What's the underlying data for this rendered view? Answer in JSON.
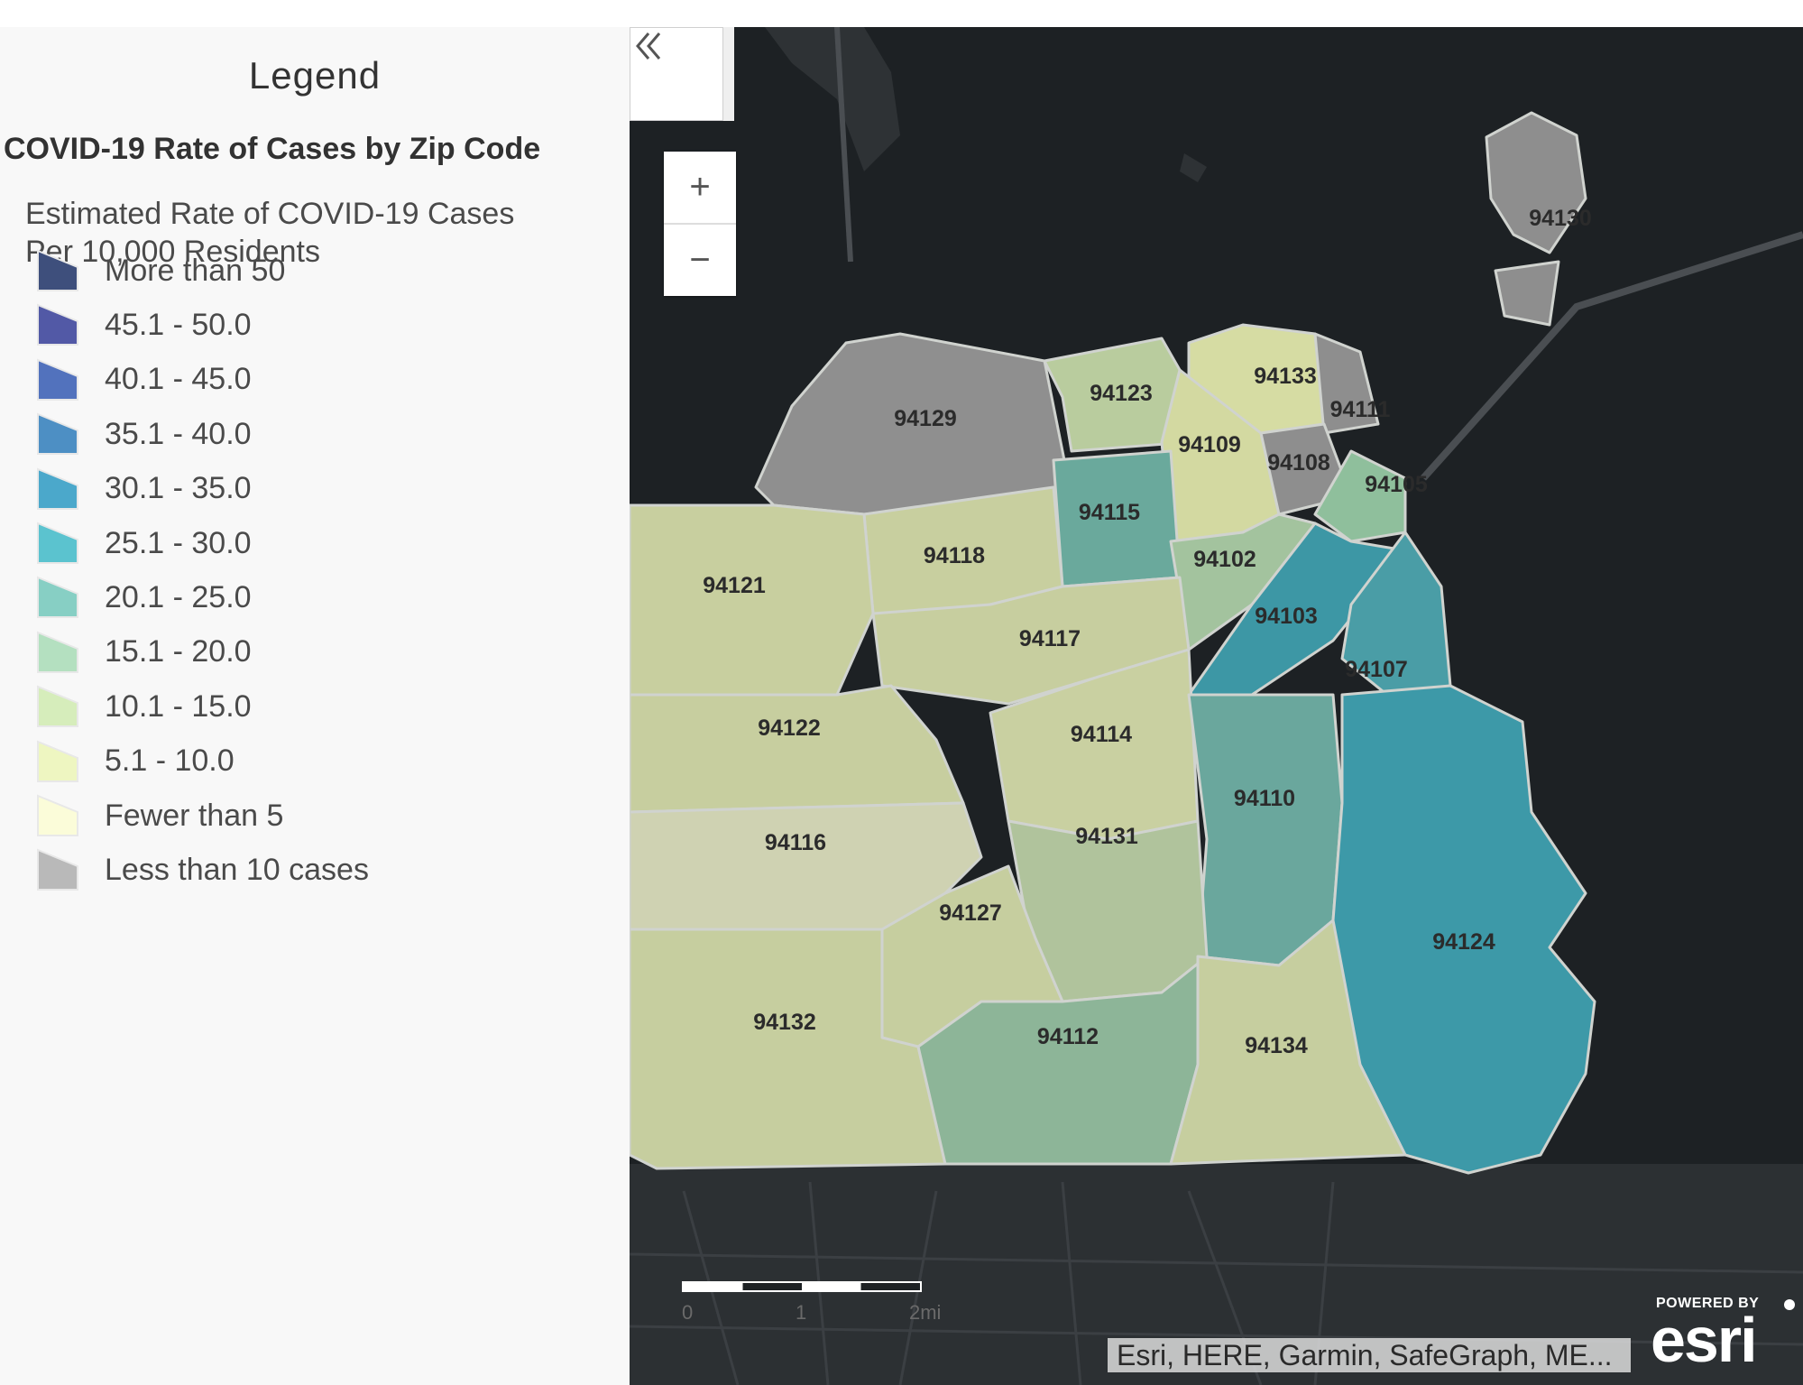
{
  "legend": {
    "title": "Legend",
    "layer_title": "COVID-19 Rate of Cases by Zip Code",
    "field_title": "Estimated Rate of COVID-19 Cases\nPer 10,000 Residents",
    "classes": [
      {
        "label": "More than 50",
        "color": "#3e4f7c"
      },
      {
        "label": "45.1 - 50.0",
        "color": "#5259a6"
      },
      {
        "label": "40.1 - 45.0",
        "color": "#5272bd"
      },
      {
        "label": "35.1 - 40.0",
        "color": "#4d8fc4"
      },
      {
        "label": "30.1 - 35.0",
        "color": "#4ba8cb"
      },
      {
        "label": "25.1 - 30.0",
        "color": "#5bc3cf"
      },
      {
        "label": "20.1 - 25.0",
        "color": "#87cfc4"
      },
      {
        "label": "15.1 - 20.0",
        "color": "#b4e0c0"
      },
      {
        "label": "10.1 - 15.0",
        "color": "#d6edbb"
      },
      {
        "label": "5.1 - 10.0",
        "color": "#eef6c1"
      },
      {
        "label": "Fewer than 5",
        "color": "#fbfcd9"
      },
      {
        "label": "Less than 10 cases",
        "color": "#b9b9b9"
      }
    ]
  },
  "map": {
    "zip_codes": [
      {
        "zip": "94129",
        "class": "Less than 10 cases"
      },
      {
        "zip": "94123",
        "class": "15.1 - 20.0"
      },
      {
        "zip": "94133",
        "class": "10.1 - 15.0"
      },
      {
        "zip": "94111",
        "class": "Less than 10 cases"
      },
      {
        "zip": "94109",
        "class": "10.1 - 15.0"
      },
      {
        "zip": "94108",
        "class": "Less than 10 cases"
      },
      {
        "zip": "94105",
        "class": "20.1 - 25.0"
      },
      {
        "zip": "94115",
        "class": "25.1 - 30.0"
      },
      {
        "zip": "94118",
        "class": "10.1 - 15.0"
      },
      {
        "zip": "94121",
        "class": "10.1 - 15.0"
      },
      {
        "zip": "94102",
        "class": "15.1 - 20.0"
      },
      {
        "zip": "94103",
        "class": "30.1 - 35.0"
      },
      {
        "zip": "94117",
        "class": "10.1 - 15.0"
      },
      {
        "zip": "94107",
        "class": "25.1 - 30.0"
      },
      {
        "zip": "94122",
        "class": "10.1 - 15.0"
      },
      {
        "zip": "94114",
        "class": "10.1 - 15.0"
      },
      {
        "zip": "94110",
        "class": "25.1 - 30.0"
      },
      {
        "zip": "94116",
        "class": "5.1 - 10.0"
      },
      {
        "zip": "94131",
        "class": "10.1 - 15.0"
      },
      {
        "zip": "94127",
        "class": "10.1 - 15.0"
      },
      {
        "zip": "94124",
        "class": "30.1 - 35.0"
      },
      {
        "zip": "94132",
        "class": "10.1 - 15.0"
      },
      {
        "zip": "94112",
        "class": "15.1 - 20.0"
      },
      {
        "zip": "94134",
        "class": "10.1 - 15.0"
      },
      {
        "zip": "94130",
        "class": "Less than 10 cases"
      }
    ],
    "zoom_in_label": "+",
    "zoom_out_label": "−",
    "collapse_icon": "double-chevron-left-icon",
    "scalebar": {
      "ticks": [
        "0",
        "1",
        "2mi"
      ]
    },
    "attribution": "Esri, HERE, Garmin, SafeGraph, ME...",
    "logo": {
      "powered_by": "POWERED BY",
      "wordmark": "esri"
    }
  }
}
